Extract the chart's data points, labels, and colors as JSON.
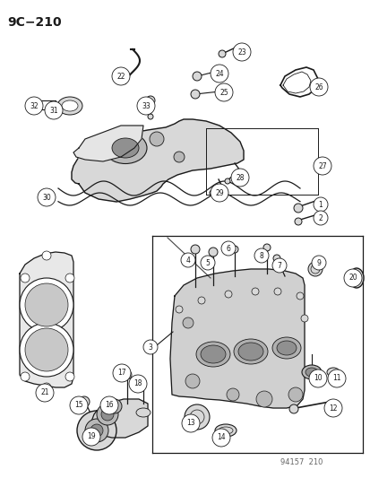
{
  "title": "9C−210",
  "footer": "94157  210",
  "bg_color": "#ffffff",
  "line_color": "#1a1a1a",
  "gray_fill": "#d8d8d8",
  "gray_mid": "#b8b8b8",
  "gray_dark": "#909090",
  "title_fontsize": 10,
  "footer_fontsize": 6,
  "label_fontsize": 5.5,
  "fig_width": 4.14,
  "fig_height": 5.33,
  "dpi": 100
}
